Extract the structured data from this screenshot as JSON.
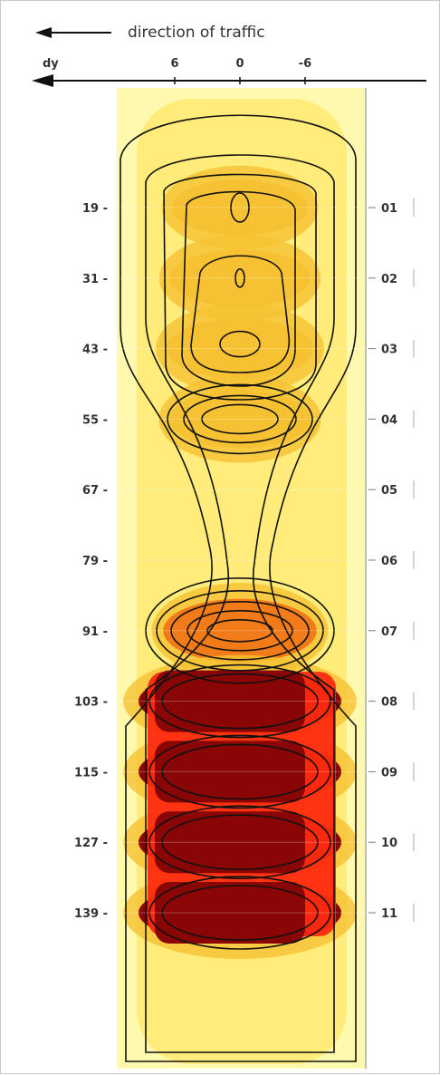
{
  "chart_data": {
    "type": "heatmap",
    "title": "direction of traffic",
    "x_axis": {
      "label": "dy",
      "ticks": [
        "6",
        "0",
        "-6"
      ],
      "tick_values": [
        6,
        0,
        -6
      ]
    },
    "y_axis": {
      "ticks": [
        "19",
        "31",
        "43",
        "55",
        "67",
        "79",
        "91",
        "103",
        "115",
        "127",
        "139"
      ],
      "tick_values": [
        19,
        31,
        43,
        55,
        67,
        79,
        91,
        103,
        115,
        127,
        139
      ]
    },
    "secondary_y_axis": {
      "ticks": [
        "01",
        "02",
        "03",
        "04",
        "05",
        "06",
        "07",
        "08",
        "09",
        "10",
        "11"
      ]
    },
    "hotspots": [
      {
        "y": 19,
        "dy": 0,
        "level": 0.38
      },
      {
        "y": 31,
        "dy": 0,
        "level": 0.44
      },
      {
        "y": 43,
        "dy": 0,
        "level": 0.52
      },
      {
        "y": 55,
        "dy": 0,
        "level": 0.45
      },
      {
        "y": 67,
        "dy": 0,
        "level": 0.05
      },
      {
        "y": 79,
        "dy": 0,
        "level": 0.05
      },
      {
        "y": 91,
        "dy": 0,
        "level": 0.62
      },
      {
        "y": 103,
        "dy": 0,
        "level": 0.98
      },
      {
        "y": 115,
        "dy": 0,
        "level": 1.0
      },
      {
        "y": 127,
        "dy": 0,
        "level": 1.0
      },
      {
        "y": 139,
        "dy": 0,
        "level": 0.96
      }
    ],
    "colors": {
      "low": "#fff9b0",
      "mid": "#f6c233",
      "high_mid": "#f07b18",
      "hot": "#ff2a10",
      "max": "#8a0606",
      "contour": "#111111"
    },
    "grid": true
  }
}
